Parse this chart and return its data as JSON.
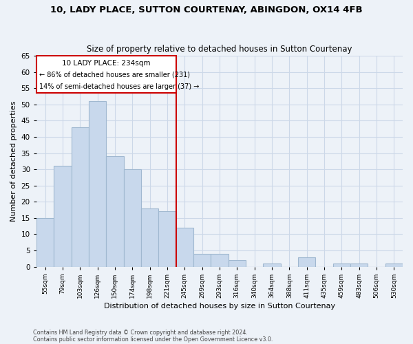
{
  "title1": "10, LADY PLACE, SUTTON COURTENAY, ABINGDON, OX14 4FB",
  "title2": "Size of property relative to detached houses in Sutton Courtenay",
  "xlabel": "Distribution of detached houses by size in Sutton Courtenay",
  "ylabel": "Number of detached properties",
  "bar_labels": [
    "55sqm",
    "79sqm",
    "103sqm",
    "126sqm",
    "150sqm",
    "174sqm",
    "198sqm",
    "221sqm",
    "245sqm",
    "269sqm",
    "293sqm",
    "316sqm",
    "340sqm",
    "364sqm",
    "388sqm",
    "411sqm",
    "435sqm",
    "459sqm",
    "483sqm",
    "506sqm",
    "530sqm"
  ],
  "bar_values": [
    15,
    31,
    43,
    51,
    34,
    30,
    18,
    17,
    12,
    4,
    4,
    2,
    0,
    1,
    0,
    3,
    0,
    1,
    1,
    0,
    1
  ],
  "bar_color": "#c8d8ec",
  "bar_edge_color": "#a0b8d0",
  "property_label": "10 LADY PLACE: 234sqm",
  "annotation_line1": "← 86% of detached houses are smaller (231)",
  "annotation_line2": "14% of semi-detached houses are larger (37) →",
  "vline_color": "#cc0000",
  "vline_bar_index": 8,
  "annotation_box_color": "#ffffff",
  "annotation_box_edge": "#cc0000",
  "ylim": [
    0,
    65
  ],
  "yticks": [
    0,
    5,
    10,
    15,
    20,
    25,
    30,
    35,
    40,
    45,
    50,
    55,
    60,
    65
  ],
  "grid_color": "#ccd8e8",
  "bg_color": "#edf2f8",
  "footer1": "Contains HM Land Registry data © Crown copyright and database right 2024.",
  "footer2": "Contains public sector information licensed under the Open Government Licence v3.0."
}
